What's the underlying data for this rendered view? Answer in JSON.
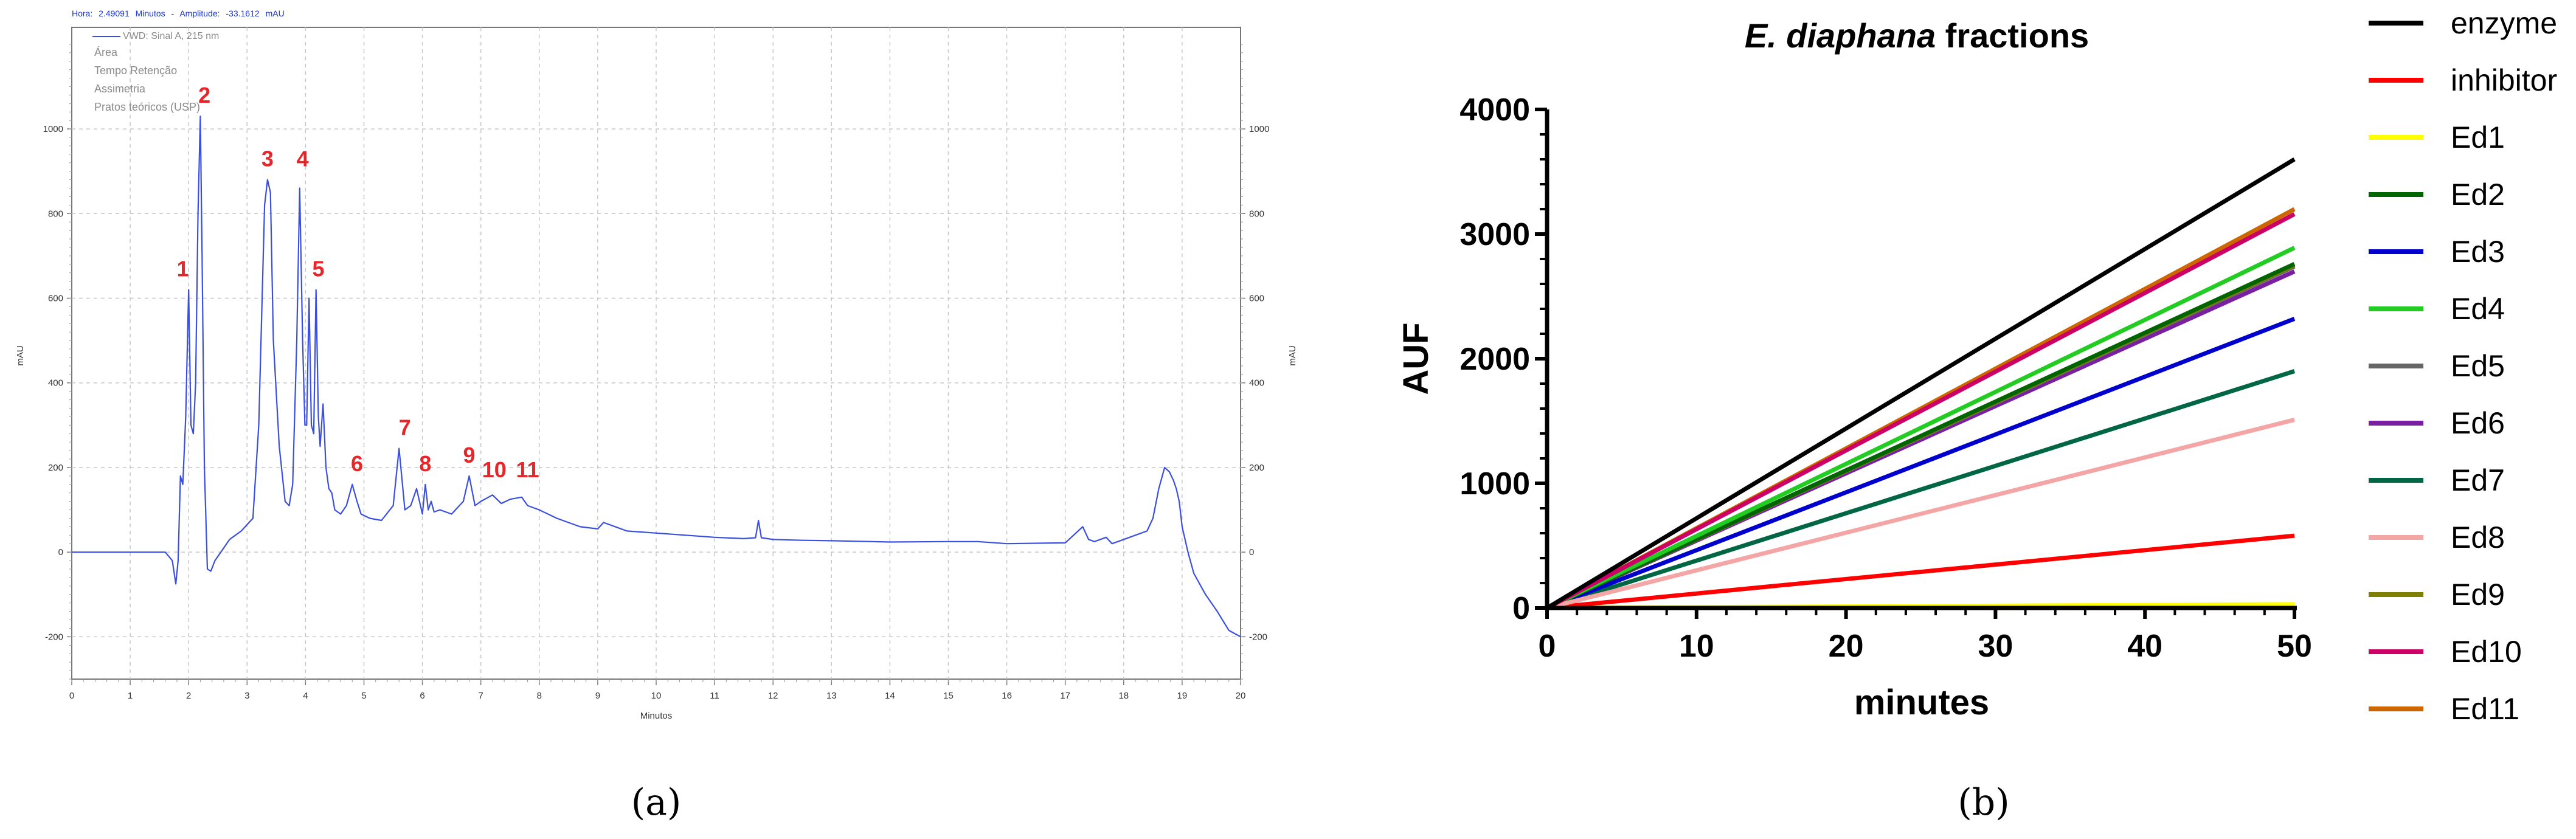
{
  "chart_data": [
    {
      "panel_label": "(a)",
      "type": "line",
      "header": {
        "hora_label": "Hora:",
        "hora_value": "2.49091",
        "hora_unit": "Minutos",
        "amplitude_label": "Amplitude:",
        "amplitude_value": "-33.1612",
        "amplitude_unit": "mAU"
      },
      "legend": [
        "VWD: Sinal A, 215 nm",
        "Área",
        "Tempo Retenção",
        "Assimetria",
        "Pratos teóricos (USP)"
      ],
      "xlabel": "Minutos",
      "ylabel_left": "mAU",
      "ylabel_right": "mAU",
      "xlim": [
        0,
        20
      ],
      "ylim": [
        -300,
        1240
      ],
      "x_ticks": [
        0,
        1,
        2,
        3,
        4,
        5,
        6,
        7,
        8,
        9,
        10,
        11,
        12,
        13,
        14,
        15,
        16,
        17,
        18,
        19,
        20
      ],
      "y_ticks": [
        -200,
        0,
        200,
        400,
        600,
        800,
        1000
      ],
      "grid": true,
      "color": "#3a4fe0",
      "peak_labels_color": "#e8262a",
      "series": [
        {
          "x": [
            0,
            1.6,
            1.72,
            1.78,
            1.82,
            1.86,
            1.9,
            1.95,
            2.0,
            2.04,
            2.08,
            2.12,
            2.16,
            2.2,
            2.23,
            2.27,
            2.32,
            2.38,
            2.45,
            2.55,
            2.7,
            2.9,
            3.1,
            3.2,
            3.3,
            3.35,
            3.4,
            3.45,
            3.55,
            3.65,
            3.72,
            3.78,
            3.85,
            3.9,
            3.95,
            3.99,
            4.02,
            4.06,
            4.1,
            4.14,
            4.18,
            4.22,
            4.25,
            4.3,
            4.35,
            4.4,
            4.45,
            4.5,
            4.6,
            4.7,
            4.8,
            4.88,
            4.95,
            5.1,
            5.3,
            5.5,
            5.6,
            5.7,
            5.8,
            5.9,
            6.0,
            6.05,
            6.1,
            6.15,
            6.2,
            6.3,
            6.5,
            6.7,
            6.8,
            6.9,
            7.0,
            7.2,
            7.35,
            7.5,
            7.7,
            7.8,
            8.0,
            8.3,
            8.7,
            9.0,
            9.1,
            9.5,
            10.0,
            10.5,
            11.0,
            11.5,
            11.7,
            11.75,
            11.8,
            12.0,
            12.5,
            13.0,
            14.0,
            15.0,
            15.5,
            16.0,
            17.0,
            17.3,
            17.4,
            17.5,
            17.7,
            17.8,
            17.9,
            18.0,
            18.2,
            18.4,
            18.5,
            18.6,
            18.7,
            18.78,
            18.85,
            18.9,
            18.95,
            19.0,
            19.1,
            19.2,
            19.4,
            19.6,
            19.8,
            20.0
          ],
          "y": [
            0,
            0,
            -20,
            -75,
            -20,
            180,
            160,
            320,
            620,
            300,
            280,
            400,
            800,
            1030,
            700,
            200,
            -40,
            -45,
            -20,
            0,
            30,
            50,
            80,
            300,
            820,
            880,
            850,
            500,
            250,
            120,
            110,
            160,
            500,
            860,
            500,
            300,
            300,
            600,
            300,
            280,
            620,
            320,
            250,
            350,
            200,
            150,
            140,
            100,
            90,
            110,
            160,
            120,
            90,
            80,
            75,
            110,
            245,
            100,
            110,
            150,
            90,
            160,
            100,
            120,
            95,
            100,
            90,
            120,
            180,
            110,
            120,
            135,
            115,
            125,
            130,
            110,
            100,
            80,
            60,
            55,
            70,
            50,
            45,
            40,
            35,
            32,
            34,
            75,
            34,
            30,
            28,
            27,
            24,
            25,
            25,
            20,
            22,
            60,
            30,
            25,
            35,
            20,
            25,
            30,
            40,
            50,
            80,
            150,
            200,
            190,
            170,
            150,
            120,
            60,
            0,
            -50,
            -100,
            -140,
            -185,
            -200
          ]
        }
      ],
      "peaks": [
        {
          "label": "1",
          "x": 1.9,
          "y": 620
        },
        {
          "label": "2",
          "x": 2.27,
          "y": 1030
        },
        {
          "label": "3",
          "x": 3.35,
          "y": 880
        },
        {
          "label": "4",
          "x": 3.95,
          "y": 880
        },
        {
          "label": "5",
          "x": 4.22,
          "y": 620
        },
        {
          "label": "6",
          "x": 4.88,
          "y": 160
        },
        {
          "label": "7",
          "x": 5.7,
          "y": 245
        },
        {
          "label": "8",
          "x": 6.05,
          "y": 160
        },
        {
          "label": "9",
          "x": 6.8,
          "y": 180
        },
        {
          "label": "10",
          "x": 7.23,
          "y": 145
        },
        {
          "label": "11",
          "x": 7.8,
          "y": 145
        }
      ]
    },
    {
      "panel_label": "(b)",
      "type": "line",
      "title_italic": "E. diaphana",
      "title_rest": " fractions",
      "xlabel": "minutes",
      "ylabel": "AUF",
      "xlim": [
        0,
        50
      ],
      "ylim": [
        0,
        4000
      ],
      "x_ticks": [
        0,
        10,
        20,
        30,
        40,
        50
      ],
      "y_ticks": [
        0,
        1000,
        2000,
        3000,
        4000
      ],
      "grid": false,
      "legend_position": "right",
      "series": [
        {
          "name": "enzyme",
          "color": "#000000",
          "x": [
            0,
            50
          ],
          "y": [
            0,
            3600
          ]
        },
        {
          "name": "inhibitor",
          "color": "#ff0000",
          "x": [
            0,
            50
          ],
          "y": [
            0,
            580
          ]
        },
        {
          "name": "Ed1",
          "color": "#ffff00",
          "x": [
            0,
            50
          ],
          "y": [
            0,
            30
          ]
        },
        {
          "name": "Ed2",
          "color": "#006400",
          "x": [
            0,
            50
          ],
          "y": [
            0,
            2760
          ]
        },
        {
          "name": "Ed3",
          "color": "#0000cc",
          "x": [
            0,
            50
          ],
          "y": [
            0,
            2320
          ]
        },
        {
          "name": "Ed4",
          "color": "#22cc22",
          "x": [
            0,
            50
          ],
          "y": [
            0,
            2890
          ]
        },
        {
          "name": "Ed5",
          "color": "#666666",
          "x": [
            0,
            50
          ],
          "y": [
            0,
            2740
          ]
        },
        {
          "name": "Ed6",
          "color": "#7a1fa2",
          "x": [
            0,
            50
          ],
          "y": [
            0,
            2700
          ]
        },
        {
          "name": "Ed7",
          "color": "#006644",
          "x": [
            0,
            50
          ],
          "y": [
            0,
            1900
          ]
        },
        {
          "name": "Ed8",
          "color": "#f4a6a6",
          "x": [
            0,
            50
          ],
          "y": [
            0,
            1510
          ]
        },
        {
          "name": "Ed9",
          "color": "#808000",
          "x": [
            0,
            50
          ],
          "y": [
            0,
            2750
          ]
        },
        {
          "name": "Ed10",
          "color": "#cc0066",
          "x": [
            0,
            50
          ],
          "y": [
            0,
            3160
          ]
        },
        {
          "name": "Ed11",
          "color": "#cc6600",
          "x": [
            0,
            50
          ],
          "y": [
            0,
            3200
          ]
        }
      ]
    }
  ]
}
